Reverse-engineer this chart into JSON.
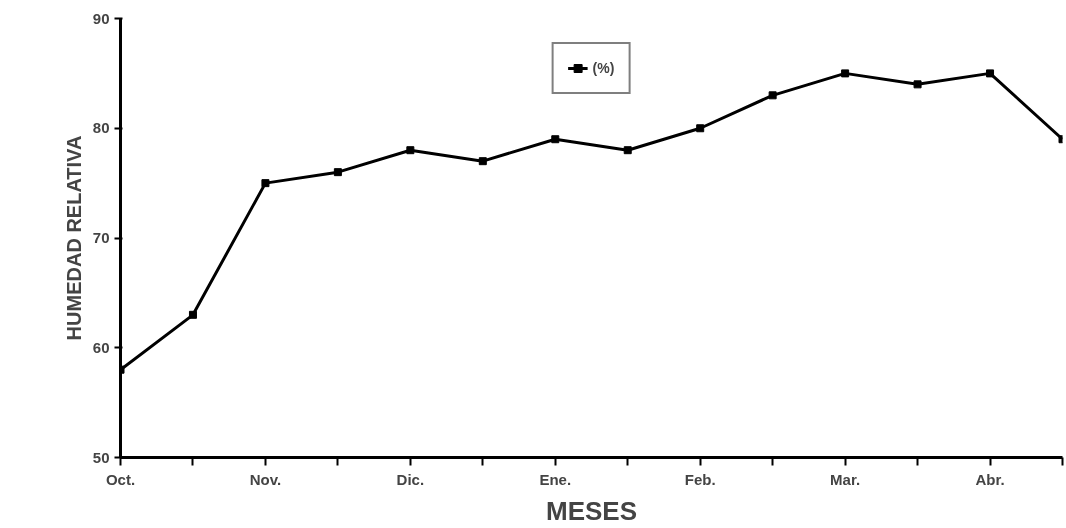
{
  "chart_data": {
    "type": "line",
    "xlabel": "MESES",
    "ylabel": "HUMEDAD RELATIVA",
    "categories": [
      "Oct.",
      null,
      "Nov.",
      null,
      "Dic.",
      null,
      "Ene.",
      null,
      "Feb.",
      null,
      "Mar.",
      null,
      "Abr.",
      null
    ],
    "series": [
      {
        "name": "(%)",
        "color": "#000000",
        "values": [
          58,
          63,
          75,
          76,
          78,
          77,
          79,
          78,
          80,
          83,
          85,
          84,
          85,
          79
        ]
      }
    ],
    "ylim": [
      50,
      90
    ],
    "yticks": [
      50,
      60,
      70,
      80,
      90
    ],
    "grid": false,
    "legend": "top",
    "marker": "square",
    "line_style": "solid"
  }
}
